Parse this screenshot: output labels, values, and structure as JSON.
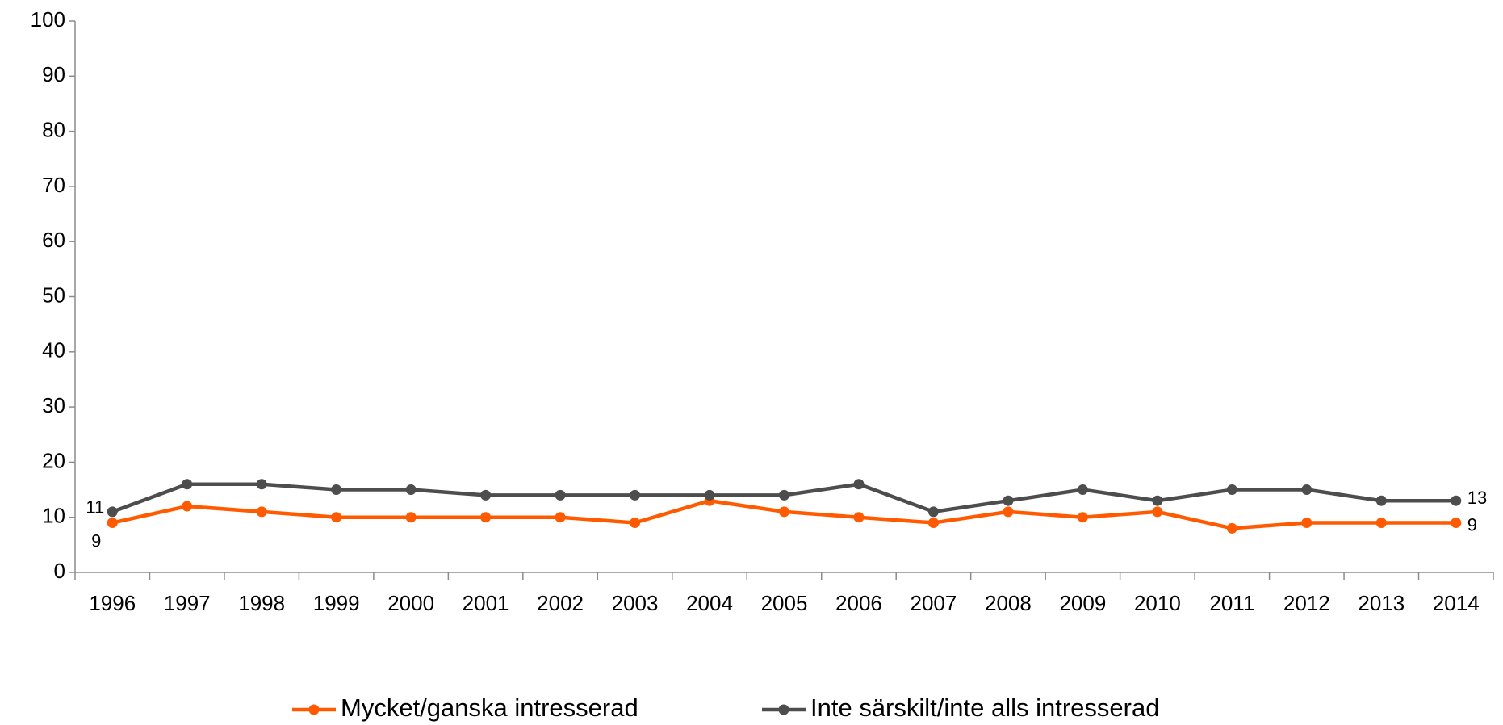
{
  "chart_data": {
    "type": "line",
    "categories": [
      "1996",
      "1997",
      "1998",
      "1999",
      "2000",
      "2001",
      "2002",
      "2003",
      "2004",
      "2005",
      "2006",
      "2007",
      "2008",
      "2009",
      "2010",
      "2011",
      "2012",
      "2013",
      "2014"
    ],
    "series": [
      {
        "name": "Mycket/ganska intresserad",
        "color": "#ff5a00",
        "values": [
          9,
          12,
          11,
          10,
          10,
          10,
          10,
          9,
          13,
          11,
          10,
          9,
          11,
          10,
          11,
          8,
          9,
          9,
          9
        ]
      },
      {
        "name": "Inte särskilt/inte alls intresserad",
        "color": "#4d4d4d",
        "values": [
          11,
          16,
          16,
          15,
          15,
          14,
          14,
          14,
          14,
          14,
          16,
          11,
          13,
          15,
          13,
          15,
          15,
          13,
          13
        ]
      }
    ],
    "ylim": [
      0,
      100
    ],
    "yticks": [
      0,
      10,
      20,
      30,
      40,
      50,
      60,
      70,
      80,
      90,
      100
    ],
    "grid": false,
    "legend": "bottom"
  }
}
